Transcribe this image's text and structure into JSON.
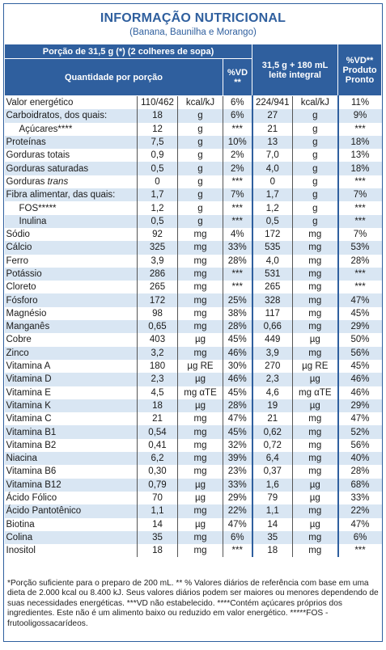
{
  "header": {
    "title": "INFORMAÇÃO NUTRICIONAL",
    "subtitle": "(Banana, Baunilha e Morango)"
  },
  "table": {
    "head": {
      "portion": "Porção de 31,5 g (*) (2 colheres de sopa)",
      "quantity": "Quantidade por porção",
      "vd": "%VD **",
      "prepared": "31,5 g + 180 mL leite integral",
      "vd_prepared": "%VD** Produto Pronto"
    },
    "rows": [
      {
        "name": "Valor energético",
        "value": "110/462",
        "unit": "kcal/kJ",
        "vd": "6%",
        "value2": "224/941",
        "unit2": "kcal/kJ",
        "vd2": "11%"
      },
      {
        "name": "Carboidratos, dos quais:",
        "value": "18",
        "unit": "g",
        "vd": "6%",
        "value2": "27",
        "unit2": "g",
        "vd2": "9%"
      },
      {
        "name": "Açúcares****",
        "indent": true,
        "value": "12",
        "unit": "g",
        "vd": "***",
        "value2": "21",
        "unit2": "g",
        "vd2": "***"
      },
      {
        "name": "Proteínas",
        "value": "7,5",
        "unit": "g",
        "vd": "10%",
        "value2": "13",
        "unit2": "g",
        "vd2": "18%"
      },
      {
        "name": "Gorduras totais",
        "value": "0,9",
        "unit": "g",
        "vd": "2%",
        "value2": "7,0",
        "unit2": "g",
        "vd2": "13%"
      },
      {
        "name": "Gorduras saturadas",
        "value": "0,5",
        "unit": "g",
        "vd": "2%",
        "value2": "4,0",
        "unit2": "g",
        "vd2": "18%"
      },
      {
        "name": "Gorduras",
        "name_italic": "trans",
        "value": "0",
        "unit": "g",
        "vd": "***",
        "value2": "0",
        "unit2": "g",
        "vd2": "***"
      },
      {
        "name": "Fibra alimentar, das quais:",
        "value": "1,7",
        "unit": "g",
        "vd": "7%",
        "value2": "1,7",
        "unit2": "g",
        "vd2": "7%"
      },
      {
        "name": "FOS*****",
        "indent": true,
        "value": "1,2",
        "unit": "g",
        "vd": "***",
        "value2": "1,2",
        "unit2": "g",
        "vd2": "***"
      },
      {
        "name": "Inulina",
        "indent": true,
        "value": "0,5",
        "unit": "g",
        "vd": "***",
        "value2": "0,5",
        "unit2": "g",
        "vd2": "***"
      },
      {
        "name": "Sódio",
        "value": "92",
        "unit": "mg",
        "vd": "4%",
        "value2": "172",
        "unit2": "mg",
        "vd2": "7%"
      },
      {
        "name": "Cálcio",
        "value": "325",
        "unit": "mg",
        "vd": "33%",
        "value2": "535",
        "unit2": "mg",
        "vd2": "53%"
      },
      {
        "name": "Ferro",
        "value": "3,9",
        "unit": "mg",
        "vd": "28%",
        "value2": "4,0",
        "unit2": "mg",
        "vd2": "28%"
      },
      {
        "name": "Potássio",
        "value": "286",
        "unit": "mg",
        "vd": "***",
        "value2": "531",
        "unit2": "mg",
        "vd2": "***"
      },
      {
        "name": "Cloreto",
        "value": "265",
        "unit": "mg",
        "vd": "***",
        "value2": "265",
        "unit2": "mg",
        "vd2": "***"
      },
      {
        "name": "Fósforo",
        "value": "172",
        "unit": "mg",
        "vd": "25%",
        "value2": "328",
        "unit2": "mg",
        "vd2": "47%"
      },
      {
        "name": "Magnésio",
        "value": "98",
        "unit": "mg",
        "vd": "38%",
        "value2": "117",
        "unit2": "mg",
        "vd2": "45%"
      },
      {
        "name": "Manganês",
        "value": "0,65",
        "unit": "mg",
        "vd": "28%",
        "value2": "0,66",
        "unit2": "mg",
        "vd2": "29%"
      },
      {
        "name": "Cobre",
        "value": "403",
        "unit": "µg",
        "vd": "45%",
        "value2": "449",
        "unit2": "µg",
        "vd2": "50%"
      },
      {
        "name": "Zinco",
        "value": "3,2",
        "unit": "mg",
        "vd": "46%",
        "value2": "3,9",
        "unit2": "mg",
        "vd2": "56%"
      },
      {
        "name": "Vitamina A",
        "value": "180",
        "unit": "µg RE",
        "vd": "30%",
        "value2": "270",
        "unit2": "µg RE",
        "vd2": "45%"
      },
      {
        "name": "Vitamina D",
        "value": "2,3",
        "unit": "µg",
        "vd": "46%",
        "value2": "2,3",
        "unit2": "µg",
        "vd2": "46%"
      },
      {
        "name": "Vitamina E",
        "value": "4,5",
        "unit": "mg αTE",
        "vd": "45%",
        "value2": "4,6",
        "unit2": "mg αTE",
        "vd2": "46%"
      },
      {
        "name": "Vitamina K",
        "value": "18",
        "unit": "µg",
        "vd": "28%",
        "value2": "19",
        "unit2": "µg",
        "vd2": "29%"
      },
      {
        "name": "Vitamina C",
        "value": "21",
        "unit": "mg",
        "vd": "47%",
        "value2": "21",
        "unit2": "mg",
        "vd2": "47%"
      },
      {
        "name": "Vitamina B1",
        "value": "0,54",
        "unit": "mg",
        "vd": "45%",
        "value2": "0,62",
        "unit2": "mg",
        "vd2": "52%"
      },
      {
        "name": "Vitamina B2",
        "value": "0,41",
        "unit": "mg",
        "vd": "32%",
        "value2": "0,72",
        "unit2": "mg",
        "vd2": "56%"
      },
      {
        "name": "Niacina",
        "value": "6,2",
        "unit": "mg",
        "vd": "39%",
        "value2": "6,4",
        "unit2": "mg",
        "vd2": "40%"
      },
      {
        "name": "Vitamina B6",
        "value": "0,30",
        "unit": "mg",
        "vd": "23%",
        "value2": "0,37",
        "unit2": "mg",
        "vd2": "28%"
      },
      {
        "name": "Vitamina B12",
        "value": "0,79",
        "unit": "µg",
        "vd": "33%",
        "value2": "1,6",
        "unit2": "µg",
        "vd2": "68%"
      },
      {
        "name": "Ácido Fólico",
        "value": "70",
        "unit": "µg",
        "vd": "29%",
        "value2": "79",
        "unit2": "µg",
        "vd2": "33%"
      },
      {
        "name": "Ácido Pantotênico",
        "value": "1,1",
        "unit": "mg",
        "vd": "22%",
        "value2": "1,1",
        "unit2": "mg",
        "vd2": "22%"
      },
      {
        "name": "Biotina",
        "value": "14",
        "unit": "µg",
        "vd": "47%",
        "value2": "14",
        "unit2": "µg",
        "vd2": "47%"
      },
      {
        "name": "Colina",
        "value": "35",
        "unit": "mg",
        "vd": "6%",
        "value2": "35",
        "unit2": "mg",
        "vd2": "6%"
      },
      {
        "name": "Inositol",
        "value": "18",
        "unit": "mg",
        "vd": "***",
        "value2": "18",
        "unit2": "mg",
        "vd2": "***"
      }
    ]
  },
  "footnote": "*Porção suficiente para o preparo de 200 mL. ** % Valores diários de referência com base em uma dieta de 2.000 kcal ou 8.400 kJ. Seus valores diários podem ser maiores ou menores dependendo de suas necessidades energéticas. ***VD não estabelecido. ****Contém açúcares próprios dos ingredientes. Este não é um alimento baixo ou reduzido em valor energético. *****FOS - frutooligossacarídeos."
}
